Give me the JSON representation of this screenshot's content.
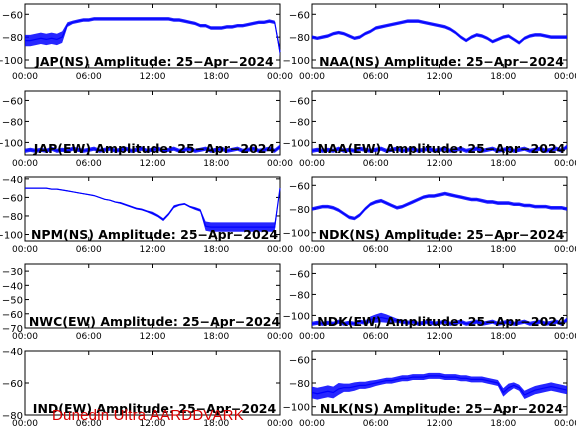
{
  "footer": "Dunedin Ultra AARDDVARK",
  "trace_color": "#0000ff",
  "chart_data": [
    {
      "type": "line",
      "title": "JAP(NS) Amplitude: 25−Apr−2024",
      "ylim": [
        -107,
        -51
      ],
      "yticks": [
        -60,
        -80,
        -100
      ],
      "series": [
        {
          "values": [
            -83,
            -83,
            -82,
            -81,
            -82,
            -81,
            -82,
            -80,
            -69,
            -67,
            -66,
            -65,
            -65,
            -64,
            -64,
            -64,
            -64,
            -64,
            -64,
            -64,
            -64,
            -64,
            -64,
            -64,
            -64,
            -64,
            -64,
            -64,
            -65,
            -65,
            -66,
            -67,
            -68,
            -70,
            -70,
            -72,
            -72,
            -72,
            -71,
            -71,
            -70,
            -70,
            -69,
            -68,
            -67,
            -67,
            -66,
            -67,
            -93
          ]
        }
      ],
      "noise": [
        10,
        10,
        10,
        10,
        10,
        10,
        10,
        10,
        4,
        3,
        3,
        3,
        3,
        3,
        3,
        3,
        3,
        3,
        3,
        3,
        3,
        3,
        3,
        3,
        3,
        3,
        3,
        3,
        3,
        3,
        3,
        3,
        3,
        3,
        3,
        3,
        3,
        3,
        3,
        3,
        3,
        3,
        3,
        3,
        3,
        3,
        3,
        3,
        8
      ]
    },
    {
      "type": "line",
      "title": "NAA(NS) Amplitude: 25−Apr−2024",
      "ylim": [
        -107,
        -51
      ],
      "yticks": [
        -60,
        -80,
        -100
      ],
      "series": [
        {
          "values": [
            -80,
            -81,
            -80,
            -79,
            -77,
            -76,
            -77,
            -79,
            -81,
            -80,
            -77,
            -75,
            -72,
            -71,
            -70,
            -69,
            -68,
            -67,
            -66,
            -66,
            -66,
            -67,
            -68,
            -69,
            -70,
            -71,
            -73,
            -76,
            -80,
            -83,
            -80,
            -78,
            -79,
            -81,
            -84,
            -82,
            -80,
            -79,
            -82,
            -85,
            -81,
            -79,
            -78,
            -78,
            -79,
            -80,
            -80,
            -80,
            -80
          ]
        }
      ],
      "noise": [
        3,
        3,
        3,
        3,
        3,
        3,
        3,
        3,
        3,
        3,
        3,
        3,
        3,
        3,
        3,
        3,
        3,
        3,
        3,
        3,
        3,
        3,
        3,
        3,
        3,
        3,
        3,
        3,
        3,
        3,
        3,
        3,
        3,
        3,
        3,
        3,
        3,
        3,
        3,
        3,
        3,
        3,
        3,
        3,
        3,
        3,
        3,
        3,
        3
      ]
    },
    {
      "type": "line",
      "title": "JAP(EW) Amplitude: 25−Apr−2024",
      "ylim": [
        -112,
        -51
      ],
      "yticks": [
        -60,
        -80,
        -100
      ],
      "series": [
        {
          "values": [
            -108,
            -107,
            -108,
            -107,
            -108,
            -106,
            -108,
            -107,
            -108,
            -106,
            -107,
            -108,
            -107,
            -106,
            -108,
            -107,
            -106,
            -108,
            -107,
            -106,
            -108,
            -107,
            -106,
            -108,
            -107,
            -106,
            -108,
            -107,
            -106,
            -108,
            -107,
            -106,
            -108,
            -107,
            -106,
            -108,
            -107,
            -106,
            -108,
            -107,
            -106,
            -108,
            -107,
            -106,
            -108,
            -107,
            -106,
            -108,
            -104
          ]
        }
      ],
      "noise": [
        4,
        4,
        4,
        4,
        4,
        4,
        4,
        4,
        4,
        4,
        4,
        4,
        4,
        4,
        4,
        4,
        4,
        4,
        4,
        4,
        4,
        4,
        4,
        4,
        4,
        4,
        4,
        4,
        4,
        4,
        4,
        4,
        4,
        4,
        4,
        4,
        4,
        4,
        4,
        4,
        4,
        4,
        4,
        4,
        4,
        4,
        4,
        4,
        4
      ]
    },
    {
      "type": "line",
      "title": "NAA(EW) Amplitude: 25−Apr−2024",
      "ylim": [
        -112,
        -51
      ],
      "yticks": [
        -60,
        -80,
        -100
      ],
      "series": [
        {
          "values": [
            -108,
            -107,
            -108,
            -107,
            -108,
            -106,
            -108,
            -107,
            -108,
            -106,
            -107,
            -108,
            -107,
            -106,
            -108,
            -107,
            -106,
            -108,
            -107,
            -106,
            -108,
            -107,
            -106,
            -108,
            -107,
            -106,
            -108,
            -107,
            -106,
            -108,
            -107,
            -106,
            -108,
            -107,
            -106,
            -108,
            -107,
            -106,
            -108,
            -107,
            -106,
            -108,
            -107,
            -106,
            -108,
            -107,
            -106,
            -108,
            -104
          ]
        }
      ],
      "noise": [
        4,
        4,
        4,
        4,
        4,
        4,
        4,
        4,
        4,
        4,
        4,
        4,
        4,
        4,
        4,
        4,
        4,
        4,
        4,
        4,
        4,
        4,
        4,
        4,
        4,
        4,
        4,
        4,
        4,
        4,
        4,
        4,
        4,
        4,
        4,
        4,
        4,
        4,
        4,
        4,
        4,
        4,
        4,
        4,
        4,
        4,
        4,
        4,
        4
      ]
    },
    {
      "type": "line",
      "title": "NPM(NS) Amplitude: 25−Apr−2024",
      "ylim": [
        -107,
        -38
      ],
      "yticks": [
        -40,
        -60,
        -80,
        -100
      ],
      "series": [
        {
          "values": [
            -50,
            -50,
            -50,
            -50,
            -50,
            -51,
            -51,
            -52,
            -53,
            -54,
            -55,
            -56,
            -57,
            -58,
            -60,
            -62,
            -63,
            -65,
            -66,
            -68,
            -70,
            -72,
            -73,
            -75,
            -77,
            -80,
            -84,
            -78,
            -70,
            -68,
            -67,
            -70,
            -72,
            -74,
            -91,
            -92,
            -92,
            -92,
            -92,
            -92,
            -92,
            -92,
            -92,
            -92,
            -92,
            -92,
            -92,
            -92,
            -50
          ]
        }
      ],
      "noise": [
        1,
        1,
        1,
        1,
        1,
        1,
        1,
        1,
        1,
        1,
        1,
        1,
        1,
        1,
        1,
        1,
        1,
        1,
        2,
        2,
        2,
        2,
        2,
        2,
        3,
        3,
        3,
        3,
        3,
        2,
        2,
        2,
        3,
        3,
        10,
        10,
        10,
        10,
        10,
        10,
        10,
        10,
        10,
        10,
        10,
        10,
        10,
        10,
        1
      ]
    },
    {
      "type": "line",
      "title": "NDK(NS) Amplitude: 25−Apr−2024",
      "ylim": [
        -107,
        -53
      ],
      "yticks": [
        -60,
        -80,
        -100
      ],
      "series": [
        {
          "values": [
            -80,
            -79,
            -78,
            -78,
            -79,
            -81,
            -84,
            -87,
            -88,
            -85,
            -80,
            -76,
            -74,
            -73,
            -75,
            -77,
            -79,
            -78,
            -76,
            -74,
            -72,
            -70,
            -69,
            -69,
            -68,
            -67,
            -68,
            -69,
            -70,
            -71,
            -72,
            -72,
            -73,
            -74,
            -74,
            -75,
            -75,
            -75,
            -76,
            -76,
            -77,
            -77,
            -78,
            -78,
            -78,
            -79,
            -79,
            -79,
            -80
          ]
        }
      ],
      "noise": [
        3,
        3,
        3,
        3,
        3,
        3,
        3,
        3,
        3,
        3,
        3,
        3,
        3,
        3,
        3,
        3,
        3,
        3,
        3,
        3,
        3,
        3,
        3,
        3,
        3,
        3,
        3,
        3,
        3,
        3,
        3,
        3,
        3,
        3,
        3,
        3,
        3,
        3,
        3,
        3,
        3,
        3,
        3,
        3,
        3,
        3,
        3,
        3,
        3
      ]
    },
    {
      "type": "line",
      "title": "NWC(EW) Amplitude: 25−Apr−2024",
      "ylim": [
        -70,
        -25
      ],
      "yticks": [
        -30,
        -40,
        -50,
        -60,
        -70
      ],
      "series": []
    },
    {
      "type": "line",
      "title": "NDK(EW) Amplitude: 25−Apr−2024",
      "ylim": [
        -112,
        -51
      ],
      "yticks": [
        -60,
        -80,
        -100
      ],
      "series": [
        {
          "values": [
            -108,
            -107,
            -108,
            -107,
            -108,
            -106,
            -108,
            -107,
            -108,
            -106,
            -107,
            -104,
            -103,
            -102,
            -103,
            -104,
            -105,
            -106,
            -107,
            -106,
            -108,
            -107,
            -106,
            -108,
            -107,
            -106,
            -108,
            -107,
            -106,
            -108,
            -107,
            -106,
            -108,
            -107,
            -106,
            -108,
            -107,
            -106,
            -108,
            -107,
            -106,
            -108,
            -107,
            -106,
            -108,
            -107,
            -106,
            -108,
            -104
          ]
        }
      ],
      "noise": [
        4,
        4,
        4,
        4,
        4,
        4,
        4,
        4,
        4,
        4,
        4,
        6,
        8,
        9,
        8,
        6,
        4,
        4,
        4,
        4,
        4,
        4,
        4,
        4,
        4,
        4,
        4,
        4,
        4,
        4,
        4,
        4,
        4,
        4,
        4,
        4,
        4,
        4,
        4,
        4,
        4,
        4,
        4,
        4,
        4,
        4,
        4,
        4,
        4
      ]
    },
    {
      "type": "line",
      "title": "IND(EW) Amplitude: 25−Apr−2024",
      "ylim": [
        -80,
        -40
      ],
      "yticks": [
        -40,
        -60,
        -80
      ],
      "series": []
    },
    {
      "type": "line",
      "title": "NLK(NS) Amplitude: 25−Apr−2024",
      "ylim": [
        -107,
        -53
      ],
      "yticks": [
        -60,
        -80,
        -100
      ],
      "series": [
        {
          "values": [
            -88,
            -89,
            -88,
            -87,
            -88,
            -85,
            -84,
            -84,
            -83,
            -82,
            -82,
            -81,
            -80,
            -79,
            -78,
            -78,
            -77,
            -76,
            -76,
            -75,
            -75,
            -75,
            -74,
            -74,
            -74,
            -75,
            -75,
            -75,
            -76,
            -76,
            -77,
            -77,
            -77,
            -78,
            -79,
            -80,
            -88,
            -84,
            -82,
            -84,
            -90,
            -88,
            -86,
            -85,
            -84,
            -83,
            -84,
            -85,
            -86
          ]
        }
      ],
      "noise": [
        10,
        10,
        10,
        10,
        10,
        10,
        7,
        7,
        7,
        6,
        6,
        6,
        5,
        5,
        5,
        5,
        5,
        5,
        5,
        5,
        5,
        5,
        5,
        5,
        5,
        5,
        5,
        5,
        5,
        5,
        5,
        5,
        5,
        5,
        5,
        5,
        7,
        7,
        5,
        5,
        7,
        7,
        7,
        7,
        7,
        7,
        7,
        7,
        7
      ]
    }
  ],
  "xticks": [
    "00:00",
    "06:00",
    "12:00",
    "18:00",
    "00:00"
  ]
}
